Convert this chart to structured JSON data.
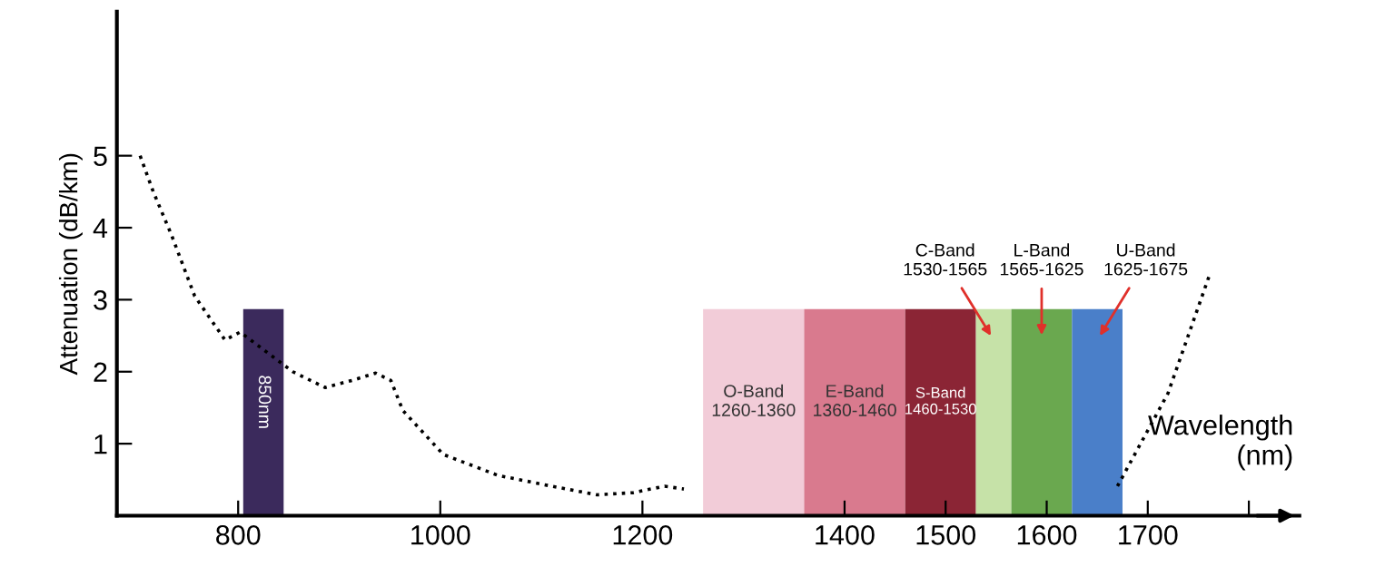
{
  "chart_data": {
    "type": "line",
    "ylabel": "Attenuation (dB/km)",
    "xlabel": "Wavelength\n(nm)",
    "series": [
      {
        "color": "#000000",
        "x": [
          703,
          716,
          734,
          757,
          787,
          802,
          854,
          886,
          913,
          936,
          951,
          963,
          1003,
          1057,
          1110,
          1155,
          1191,
          1222,
          1241,
          1450,
          1670,
          1720,
          1761
        ],
        "values": [
          5.0,
          4.5,
          3.9,
          3.05,
          2.44,
          2.55,
          2.0,
          1.78,
          1.88,
          1.98,
          1.88,
          1.46,
          0.85,
          0.56,
          0.41,
          0.29,
          0.32,
          0.41,
          0.37,
          null,
          0.41,
          1.7,
          3.34
        ]
      }
    ],
    "line_style": "dotted",
    "marker": "none",
    "grid": false,
    "legend": false,
    "xlim": [
      680,
      1850
    ],
    "ylim": [
      0,
      7
    ],
    "xticks": [
      800,
      1000,
      1200,
      1400,
      1500,
      1600,
      1700,
      {
        "value": 1800,
        "label": null
      }
    ],
    "yticks": [
      1,
      2,
      3,
      4,
      5
    ],
    "bands": [
      {
        "axis": "x",
        "from": 805,
        "to": 845,
        "label": "850nm",
        "color": "#3b2a5c"
      },
      {
        "axis": "x",
        "from": 1260,
        "to": 1360,
        "label": "O-Band\n1260-1360",
        "color": "#f2ccd8"
      },
      {
        "axis": "x",
        "from": 1360,
        "to": 1460,
        "label": "E-Band\n1360-1460",
        "color": "#d97a8e"
      },
      {
        "axis": "x",
        "from": 1460,
        "to": 1530,
        "label": "S-Band\n1460-1530",
        "color": "#8b2535"
      },
      {
        "axis": "x",
        "from": 1530,
        "to": 1565,
        "color": "#c6e2a8"
      },
      {
        "axis": "x",
        "from": 1565,
        "to": 1625,
        "color": "#6aa84f"
      },
      {
        "axis": "x",
        "from": 1625,
        "to": 1675,
        "color": "#4a7fc9"
      }
    ],
    "annotations": [
      "C-Band\n1530-1565",
      "L-Band\n1565-1625",
      "U-Band\n1625-1675"
    ]
  }
}
